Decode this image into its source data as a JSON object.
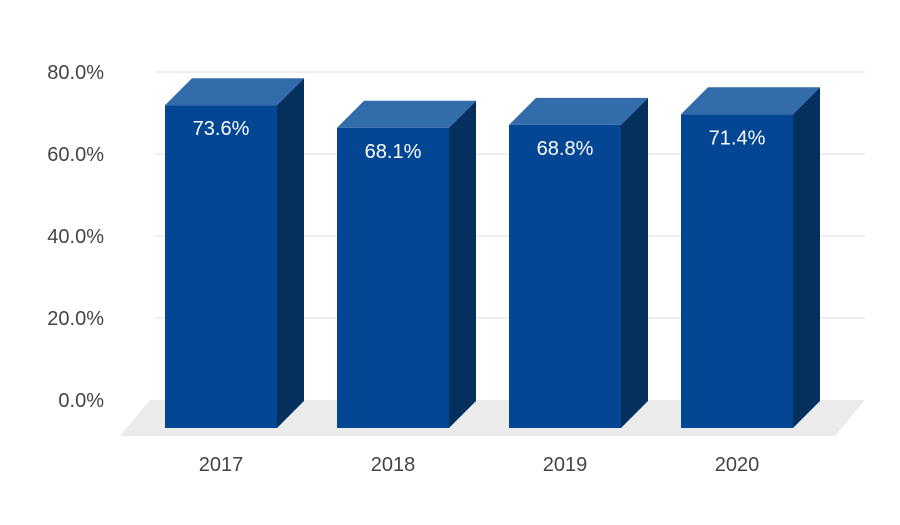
{
  "chart_data": {
    "type": "bar",
    "style": "3d",
    "categories": [
      "2017",
      "2018",
      "2019",
      "2020"
    ],
    "values": [
      73.6,
      68.1,
      68.8,
      71.4
    ],
    "data_labels": [
      "73.6%",
      "68.1%",
      "68.8%",
      "71.4%"
    ],
    "y_ticks": [
      0,
      20,
      40,
      60,
      80
    ],
    "y_tick_labels": [
      "0.0%",
      "20.0%",
      "40.0%",
      "60.0%",
      "80.0%"
    ],
    "ylim": [
      0,
      80
    ],
    "grid": true,
    "legend": "none",
    "colors": {
      "bar_front": "#034694",
      "bar_top": "#336CAB",
      "bar_side": "#04305E",
      "floor": "#EBEBEB",
      "gridline": "#DEDEDE",
      "tick_text": "#444444",
      "label_text": "#FFFFFF"
    }
  }
}
